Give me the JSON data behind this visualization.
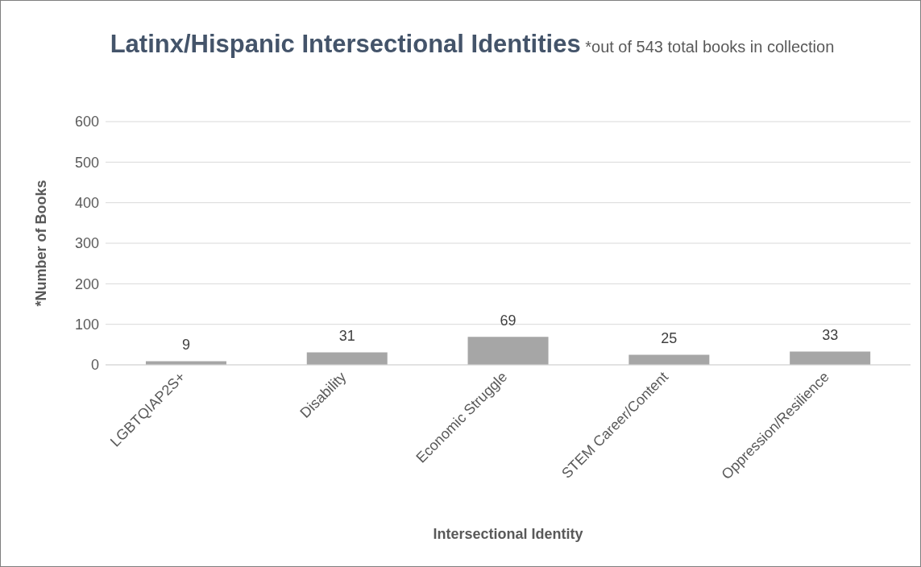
{
  "chart_data": {
    "type": "bar",
    "title": "Latinx/Hispanic Intersectional Identities",
    "subtitle": "*out of 543 total books in collection",
    "xlabel": "Intersectional Identity",
    "ylabel": "*Number of Books",
    "categories": [
      "LGBTQIAP2S+",
      "Disability",
      "Economic Struggle",
      "STEM Career/Content",
      "Oppression/Resilience"
    ],
    "values": [
      9,
      31,
      69,
      25,
      33
    ],
    "color": "#a6a6a6",
    "ylim": [
      0,
      600
    ],
    "yticks": [
      0,
      100,
      200,
      300,
      400,
      500,
      600
    ],
    "grid": "y",
    "data_labels": true,
    "legend": false
  }
}
